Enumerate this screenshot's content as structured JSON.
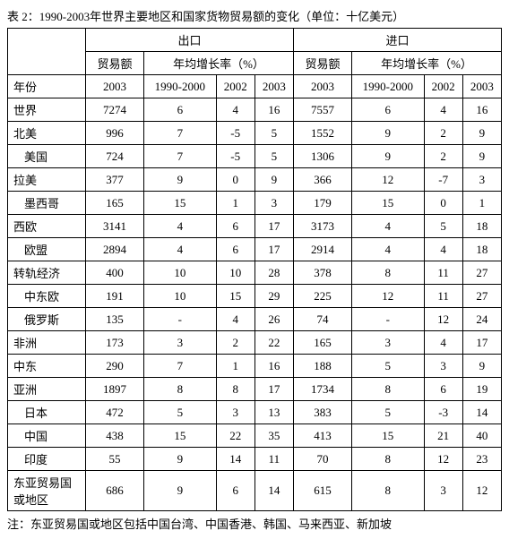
{
  "title": "表 2：1990-2003年世界主要地区和国家货物贸易额的变化（单位：十亿美元）",
  "groupHeaders": {
    "exports": "出口",
    "imports": "进口"
  },
  "subHeaders": {
    "tradeValue": "贸易额",
    "growthRate": "年均增长率（%）"
  },
  "yearLabel": "年份",
  "yearCols": {
    "c2003": "2003",
    "c1990_2000": "1990-2000",
    "c2002": "2002",
    "c2003b": "2003"
  },
  "rows": [
    {
      "label": "世界",
      "indent": false,
      "e": [
        "7274",
        "6",
        "4",
        "16"
      ],
      "i": [
        "7557",
        "6",
        "4",
        "16"
      ]
    },
    {
      "label": "北美",
      "indent": false,
      "e": [
        "996",
        "7",
        "-5",
        "5"
      ],
      "i": [
        "1552",
        "9",
        "2",
        "9"
      ]
    },
    {
      "label": "美国",
      "indent": true,
      "e": [
        "724",
        "7",
        "-5",
        "5"
      ],
      "i": [
        "1306",
        "9",
        "2",
        "9"
      ]
    },
    {
      "label": "拉美",
      "indent": false,
      "e": [
        "377",
        "9",
        "0",
        "9"
      ],
      "i": [
        "366",
        "12",
        "-7",
        "3"
      ]
    },
    {
      "label": "墨西哥",
      "indent": true,
      "e": [
        "165",
        "15",
        "1",
        "3"
      ],
      "i": [
        "179",
        "15",
        "0",
        "1"
      ]
    },
    {
      "label": "西欧",
      "indent": false,
      "e": [
        "3141",
        "4",
        "6",
        "17"
      ],
      "i": [
        "3173",
        "4",
        "5",
        "18"
      ]
    },
    {
      "label": "欧盟",
      "indent": true,
      "e": [
        "2894",
        "4",
        "6",
        "17"
      ],
      "i": [
        "2914",
        "4",
        "4",
        "18"
      ]
    },
    {
      "label": "转轨经济",
      "indent": false,
      "e": [
        "400",
        "10",
        "10",
        "28"
      ],
      "i": [
        "378",
        "8",
        "11",
        "27"
      ]
    },
    {
      "label": "中东欧",
      "indent": true,
      "e": [
        "191",
        "10",
        "15",
        "29"
      ],
      "i": [
        "225",
        "12",
        "11",
        "27"
      ]
    },
    {
      "label": "俄罗斯",
      "indent": true,
      "e": [
        "135",
        "-",
        "4",
        "26"
      ],
      "i": [
        "74",
        "-",
        "12",
        "24"
      ]
    },
    {
      "label": "非洲",
      "indent": false,
      "e": [
        "173",
        "3",
        "2",
        "22"
      ],
      "i": [
        "165",
        "3",
        "4",
        "17"
      ]
    },
    {
      "label": "中东",
      "indent": false,
      "e": [
        "290",
        "7",
        "1",
        "16"
      ],
      "i": [
        "188",
        "5",
        "3",
        "9"
      ]
    },
    {
      "label": "亚洲",
      "indent": false,
      "e": [
        "1897",
        "8",
        "8",
        "17"
      ],
      "i": [
        "1734",
        "8",
        "6",
        "19"
      ]
    },
    {
      "label": "日本",
      "indent": true,
      "e": [
        "472",
        "5",
        "3",
        "13"
      ],
      "i": [
        "383",
        "5",
        "-3",
        "14"
      ]
    },
    {
      "label": "中国",
      "indent": true,
      "e": [
        "438",
        "15",
        "22",
        "35"
      ],
      "i": [
        "413",
        "15",
        "21",
        "40"
      ]
    },
    {
      "label": "印度",
      "indent": true,
      "e": [
        "55",
        "9",
        "14",
        "11"
      ],
      "i": [
        "70",
        "8",
        "12",
        "23"
      ]
    },
    {
      "label": "东亚贸易国或地区",
      "indent": false,
      "e": [
        "686",
        "9",
        "6",
        "14"
      ],
      "i": [
        "615",
        "8",
        "3",
        "12"
      ]
    }
  ],
  "note": "注：东亚贸易国或地区包括中国台湾、中国香港、韩国、马来西亚、新加坡"
}
